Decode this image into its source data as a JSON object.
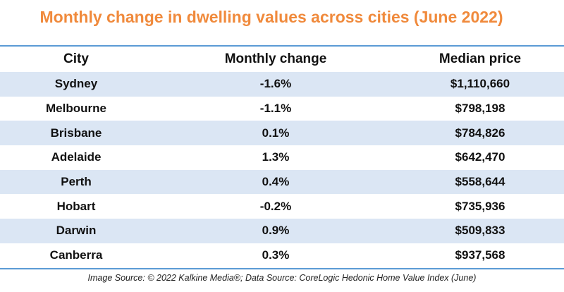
{
  "chart_data": {
    "type": "table",
    "title": "Monthly change in dwelling values across cities (June 2022)",
    "columns": [
      "City",
      "Monthly change",
      "Median price"
    ],
    "rows": [
      {
        "city": "Sydney",
        "change": "-1.6%",
        "price": "$1,110,660"
      },
      {
        "city": "Melbourne",
        "change": "-1.1%",
        "price": "$798,198"
      },
      {
        "city": "Brisbane",
        "change": "0.1%",
        "price": "$784,826"
      },
      {
        "city": "Adelaide",
        "change": "1.3%",
        "price": "$642,470"
      },
      {
        "city": "Perth",
        "change": "0.4%",
        "price": "$558,644"
      },
      {
        "city": "Hobart",
        "change": "-0.2%",
        "price": "$735,936"
      },
      {
        "city": "Darwin",
        "change": "0.9%",
        "price": "$509,833"
      },
      {
        "city": "Canberra",
        "change": "0.3%",
        "price": "$937,568"
      }
    ],
    "source": "Image Source: © 2022 Kalkine Media®; Data Source: CoreLogic Hedonic Home Value Index (June)"
  },
  "colors": {
    "title": "#f08a3c",
    "rule": "#5b9bd5",
    "band": "#dbe6f4"
  }
}
